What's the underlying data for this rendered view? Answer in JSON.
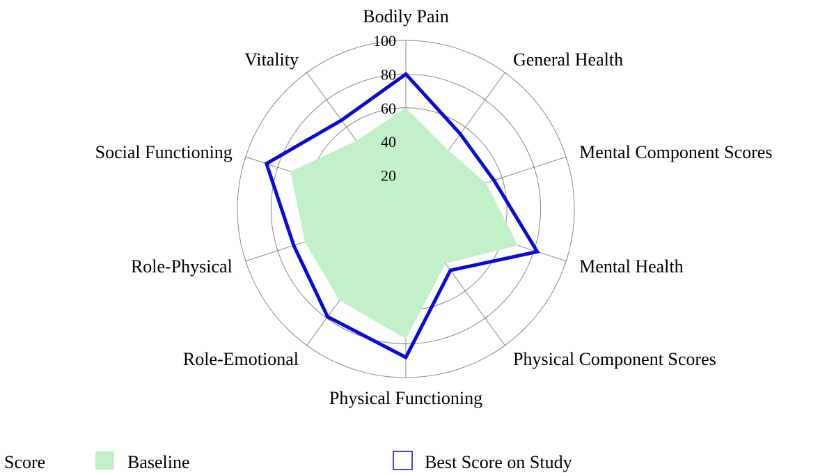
{
  "chart_data": {
    "type": "radar",
    "categories": [
      "Bodily Pain",
      "General Health",
      "Mental Component Scores",
      "Mental Health",
      "Physical Component Scores",
      "Physical Functioning",
      "Role-Emotional",
      "Role-Physical",
      "Social Functioning",
      "Vitality"
    ],
    "radial_ticks": [
      "20",
      "40",
      "60",
      "80",
      "100"
    ],
    "rmax": 100,
    "series": [
      {
        "name": "Baseline",
        "style": "fill",
        "color": "#c2f0c8",
        "values": [
          60,
          43,
          50,
          70,
          40,
          77,
          67,
          63,
          72,
          50
        ]
      },
      {
        "name": "Best Score on Study",
        "style": "line",
        "color": "#0a0ad6",
        "values": [
          80,
          55,
          55,
          82,
          45,
          88,
          79,
          70,
          87,
          65
        ]
      }
    ],
    "legend": {
      "title": "Score",
      "position": "bottom"
    },
    "grid": true
  }
}
